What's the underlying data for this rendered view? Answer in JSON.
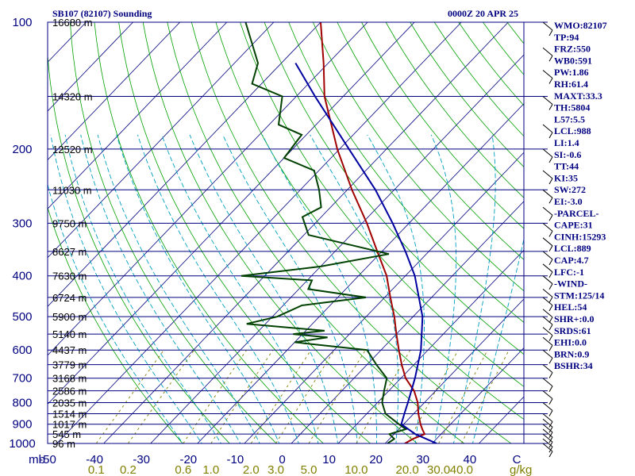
{
  "header": {
    "station": "SB107 (82107) Sounding",
    "time": "0000Z 20 APR 25"
  },
  "chart_data": {
    "type": "line",
    "title": "SB107 (82107) Sounding",
    "subtitle": "0000Z 20 APR 25",
    "diagram": "skew-T log-P",
    "pressure_unit": "mb",
    "mixing_ratio_unit": "g/kg",
    "pressure_ticks": [
      100,
      200,
      300,
      400,
      500,
      600,
      700,
      800,
      900,
      1000
    ],
    "pressure_range": [
      1000,
      100
    ],
    "temperature_ticks": [
      -50,
      -40,
      -30,
      -20,
      -10,
      0,
      10,
      20,
      30,
      40
    ],
    "temperature_tick_labels": [
      "-50",
      "-40",
      "-30",
      "-20",
      "-10",
      "0",
      "10",
      "20",
      "30",
      "40",
      "C"
    ],
    "mixing_ratio_ticks": [
      "0.1",
      "0.2",
      "0.6",
      "1.0",
      "2.0",
      "3.0",
      "5.0",
      "10.0",
      "20.0",
      "30.0",
      "40.0"
    ],
    "height_labels": [
      {
        "p": 100,
        "label": "16680 m"
      },
      {
        "p": 150,
        "label": "14320 m"
      },
      {
        "p": 200,
        "label": "12520 m"
      },
      {
        "p": 250,
        "label": "11030 m"
      },
      {
        "p": 300,
        "label": "9750 m"
      },
      {
        "p": 350,
        "label": "8627 m"
      },
      {
        "p": 400,
        "label": "7630 m"
      },
      {
        "p": 450,
        "label": "6724 m"
      },
      {
        "p": 500,
        "label": "5900 m"
      },
      {
        "p": 550,
        "label": "5140 m"
      },
      {
        "p": 600,
        "label": "4437 m"
      },
      {
        "p": 650,
        "label": "3779 m"
      },
      {
        "p": 700,
        "label": "3168 m"
      },
      {
        "p": 750,
        "label": "2586 m"
      },
      {
        "p": 800,
        "label": "2035 m"
      },
      {
        "p": 850,
        "label": "1514 m"
      },
      {
        "p": 900,
        "label": "1017 m"
      },
      {
        "p": 950,
        "label": "545 m"
      },
      {
        "p": 1000,
        "label": "96 m"
      }
    ],
    "series": [
      {
        "name": "temperature",
        "color": "#a00000",
        "points": [
          {
            "p": 1000,
            "t": 24.2
          },
          {
            "p": 975,
            "t": 25.0
          },
          {
            "p": 950,
            "t": 26.5
          },
          {
            "p": 925,
            "t": 25.0
          },
          {
            "p": 900,
            "t": 23.6
          },
          {
            "p": 850,
            "t": 21.0
          },
          {
            "p": 800,
            "t": 18.6
          },
          {
            "p": 750,
            "t": 15.4
          },
          {
            "p": 700,
            "t": 11.0
          },
          {
            "p": 650,
            "t": 7.4
          },
          {
            "p": 600,
            "t": 3.8
          },
          {
            "p": 550,
            "t": 0.0
          },
          {
            "p": 500,
            "t": -4.0
          },
          {
            "p": 450,
            "t": -8.8
          },
          {
            "p": 400,
            "t": -14.0
          },
          {
            "p": 350,
            "t": -21.0
          },
          {
            "p": 300,
            "t": -29.0
          },
          {
            "p": 250,
            "t": -39.0
          },
          {
            "p": 200,
            "t": -50.5
          },
          {
            "p": 150,
            "t": -64.0
          },
          {
            "p": 125,
            "t": -71.0
          },
          {
            "p": 100,
            "t": -80.0
          }
        ]
      },
      {
        "name": "dewpoint",
        "color": "#004000",
        "points": [
          {
            "p": 1000,
            "t": 20.5
          },
          {
            "p": 975,
            "t": 21.0
          },
          {
            "p": 950,
            "t": 19.0
          },
          {
            "p": 925,
            "t": 21.5
          },
          {
            "p": 900,
            "t": 19.0
          },
          {
            "p": 850,
            "t": 14.0
          },
          {
            "p": 800,
            "t": 11.0
          },
          {
            "p": 750,
            "t": 9.0
          },
          {
            "p": 700,
            "t": 7.0
          },
          {
            "p": 650,
            "t": 2.0
          },
          {
            "p": 600,
            "t": -3.0
          },
          {
            "p": 575,
            "t": -20.0
          },
          {
            "p": 560,
            "t": -14.0
          },
          {
            "p": 550,
            "t": -22.0
          },
          {
            "p": 540,
            "t": -16.0
          },
          {
            "p": 520,
            "t": -34.0
          },
          {
            "p": 500,
            "t": -29.0
          },
          {
            "p": 470,
            "t": -26.0
          },
          {
            "p": 450,
            "t": -14.0
          },
          {
            "p": 430,
            "t": -28.0
          },
          {
            "p": 410,
            "t": -29.0
          },
          {
            "p": 400,
            "t": -45.0
          },
          {
            "p": 380,
            "t": -30.0
          },
          {
            "p": 355,
            "t": -18.0
          },
          {
            "p": 320,
            "t": -39.0
          },
          {
            "p": 290,
            "t": -44.0
          },
          {
            "p": 275,
            "t": -42.0
          },
          {
            "p": 250,
            "t": -46.0
          },
          {
            "p": 225,
            "t": -51.0
          },
          {
            "p": 210,
            "t": -60.0
          },
          {
            "p": 185,
            "t": -61.0
          },
          {
            "p": 175,
            "t": -68.0
          },
          {
            "p": 150,
            "t": -73.0
          },
          {
            "p": 140,
            "t": -82.0
          },
          {
            "p": 125,
            "t": -85.0
          },
          {
            "p": 100,
            "t": -96.0
          }
        ]
      },
      {
        "name": "parcel",
        "color": "#0000a0",
        "points": [
          {
            "p": 1000,
            "t": 31.0
          },
          {
            "p": 950,
            "t": 24.5
          },
          {
            "p": 900,
            "t": 19.5
          },
          {
            "p": 850,
            "t": 18.0
          },
          {
            "p": 800,
            "t": 16.5
          },
          {
            "p": 700,
            "t": 13.0
          },
          {
            "p": 600,
            "t": 8.5
          },
          {
            "p": 500,
            "t": 2.0
          },
          {
            "p": 400,
            "t": -8.0
          },
          {
            "p": 350,
            "t": -15.0
          },
          {
            "p": 300,
            "t": -23.5
          },
          {
            "p": 250,
            "t": -34.0
          },
          {
            "p": 200,
            "t": -48.0
          },
          {
            "p": 150,
            "t": -66.0
          },
          {
            "p": 125,
            "t": -77.0
          }
        ]
      }
    ],
    "wind_barbs": [
      {
        "p": 100
      },
      {
        "p": 115
      },
      {
        "p": 130
      },
      {
        "p": 150
      },
      {
        "p": 175
      },
      {
        "p": 200
      },
      {
        "p": 225
      },
      {
        "p": 250
      },
      {
        "p": 275
      },
      {
        "p": 300
      },
      {
        "p": 325
      },
      {
        "p": 350
      },
      {
        "p": 375
      },
      {
        "p": 400
      },
      {
        "p": 430
      },
      {
        "p": 450
      },
      {
        "p": 480
      },
      {
        "p": 500
      },
      {
        "p": 530
      },
      {
        "p": 560
      },
      {
        "p": 600
      },
      {
        "p": 650
      },
      {
        "p": 700
      },
      {
        "p": 750
      },
      {
        "p": 800
      },
      {
        "p": 850
      },
      {
        "p": 875
      },
      {
        "p": 900
      },
      {
        "p": 925
      },
      {
        "p": 950
      },
      {
        "p": 975
      },
      {
        "p": 1000
      }
    ]
  },
  "indices": [
    "WMO:82107",
    "TP:94",
    "FRZ:550",
    "WB0:591",
    "PW:1.86",
    "RH:61.4",
    "MAXT:33.3",
    "TH:5804",
    "L57:5.5",
    "LCL:988",
    "LI:1.4",
    "SI:-0.6",
    "TT:44",
    "KI:35",
    "SW:272",
    "EI:-3.0",
    "-PARCEL-",
    "CAPE:31",
    "CINH:15293",
    "LCL:889",
    "CAP:4.7",
    "LFC:-1",
    "-WIND-",
    "STM:125/14",
    "HEL:54",
    "SHR+:0.0",
    "SRDS:61",
    "EHI:0.0",
    "BRN:0.9",
    "BSHR:34"
  ],
  "colors": {
    "isobar": "#000080",
    "isotherm": "#000080",
    "dry_adiabat": "#00a000",
    "moist_adiabat": "#00a0c0",
    "mixing_ratio": "#808000",
    "temperature": "#a00000",
    "dewpoint": "#004000",
    "parcel": "#0000a0"
  }
}
